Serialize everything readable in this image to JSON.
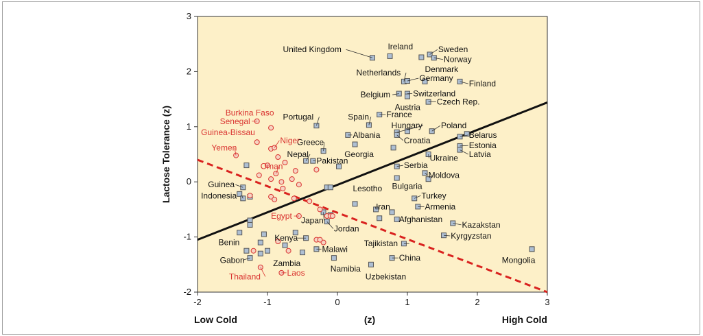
{
  "chart_data": {
    "type": "scatter",
    "title": "",
    "ylabel": "Lactose Tolerance (z)",
    "xlabel": "(z)",
    "x_left_label": "Low Cold",
    "x_right_label": "High Cold",
    "xlim": [
      -2,
      3
    ],
    "ylim": [
      -2,
      3
    ],
    "x_ticks": [
      "-2",
      "-1",
      "0",
      "1",
      "2",
      "3"
    ],
    "y_ticks": [
      "-2",
      "-1",
      "0",
      "1",
      "2",
      "3"
    ],
    "grid": false,
    "colors": {
      "background": "#fdf0c8",
      "square_fill": "#aebfd3",
      "square_stroke": "#555555",
      "circle_stroke": "#d9322f",
      "red_label": "#d9322f",
      "black_label": "#111111",
      "regression_black": "#111111",
      "regression_red": "#d9221f"
    },
    "regression_lines": [
      {
        "name": "",
        "color": "#111111",
        "style": "solid",
        "from": [
          -2,
          -1.05
        ],
        "to": [
          3,
          1.44
        ]
      },
      {
        "name": "",
        "color": "#d9221f",
        "style": "dashed",
        "from": [
          -2,
          0.4
        ],
        "to": [
          3,
          -2.0
        ]
      }
    ],
    "series": [
      {
        "marker": "square",
        "points": [
          {
            "x": 0.5,
            "y": 2.25,
            "label": "United Kingdom",
            "lx": -0.78,
            "ly": 2.4
          },
          {
            "x": 0.75,
            "y": 2.28,
            "label": "Ireland",
            "lx": 0.72,
            "ly": 2.45
          },
          {
            "x": 1.2,
            "y": 2.26
          },
          {
            "x": 1.32,
            "y": 2.31,
            "label": "Sweden",
            "lx": 1.44,
            "ly": 2.4
          },
          {
            "x": 1.38,
            "y": 2.25,
            "label": "Norway",
            "lx": 1.52,
            "ly": 2.22
          },
          {
            "x": 1.25,
            "y": 1.82,
            "label": "Denmark",
            "lx": 1.25,
            "ly": 2.04
          },
          {
            "x": 0.95,
            "y": 1.82,
            "label": "Netherlands",
            "lx": 0.27,
            "ly": 1.98
          },
          {
            "x": 1.0,
            "y": 1.83,
            "label": "Germany",
            "lx": 1.17,
            "ly": 1.88
          },
          {
            "x": 1.75,
            "y": 1.82,
            "label": "Finland",
            "lx": 1.88,
            "ly": 1.78
          },
          {
            "x": 0.88,
            "y": 1.6,
            "label": "Belgium",
            "lx": 0.33,
            "ly": 1.58
          },
          {
            "x": 1.0,
            "y": 1.6,
            "label": "Switzerland",
            "lx": 1.08,
            "ly": 1.6
          },
          {
            "x": 1.0,
            "y": 1.55,
            "label": "Austria",
            "lx": 0.82,
            "ly": 1.35
          },
          {
            "x": 1.3,
            "y": 1.45,
            "label": "Czech Rep.",
            "lx": 1.42,
            "ly": 1.45
          },
          {
            "x": 0.6,
            "y": 1.22,
            "label": "France",
            "lx": 0.7,
            "ly": 1.22
          },
          {
            "x": 0.45,
            "y": 1.03,
            "label": "Spain",
            "lx": 0.15,
            "ly": 1.18
          },
          {
            "x": -0.3,
            "y": 1.02,
            "label": "Portugal",
            "lx": -0.78,
            "ly": 1.18
          },
          {
            "x": 0.85,
            "y": 0.9,
            "label": "Hungary",
            "lx": 0.77,
            "ly": 1.02
          },
          {
            "x": 1.0,
            "y": 0.92
          },
          {
            "x": 1.35,
            "y": 0.92,
            "label": "Poland",
            "lx": 1.48,
            "ly": 1.02
          },
          {
            "x": 0.15,
            "y": 0.85,
            "label": "Albania",
            "lx": 0.22,
            "ly": 0.85
          },
          {
            "x": 0.85,
            "y": 0.85,
            "label": "Croatia",
            "lx": 0.95,
            "ly": 0.75
          },
          {
            "x": 1.75,
            "y": 0.82,
            "label": "Belarus",
            "lx": 1.88,
            "ly": 0.85
          },
          {
            "x": 1.85,
            "y": 0.87
          },
          {
            "x": 1.75,
            "y": 0.65,
            "label": "Estonia",
            "lx": 1.88,
            "ly": 0.66
          },
          {
            "x": 1.75,
            "y": 0.58,
            "label": "Latvia",
            "lx": 1.88,
            "ly": 0.5
          },
          {
            "x": 0.8,
            "y": 0.62
          },
          {
            "x": -0.2,
            "y": 0.56,
            "label": "Greece",
            "lx": -0.58,
            "ly": 0.72
          },
          {
            "x": 0.25,
            "y": 0.68,
            "label": "Georgia",
            "lx": 0.1,
            "ly": 0.5
          },
          {
            "x": -0.45,
            "y": 0.38,
            "label": "Nepal",
            "lx": -0.72,
            "ly": 0.5
          },
          {
            "x": -0.35,
            "y": 0.38,
            "label": "Pakistan",
            "lx": -0.3,
            "ly": 0.38
          },
          {
            "x": 0.02,
            "y": 0.28
          },
          {
            "x": 1.3,
            "y": 0.5,
            "label": "Ukraine",
            "lx": 1.32,
            "ly": 0.43
          },
          {
            "x": 0.85,
            "y": 0.28,
            "label": "Serbia",
            "lx": 0.95,
            "ly": 0.3
          },
          {
            "x": 1.25,
            "y": 0.16,
            "label": "Moldova",
            "lx": 1.3,
            "ly": 0.12
          },
          {
            "x": 0.85,
            "y": 0.07,
            "label": "Bulgaria",
            "lx": 0.78,
            "ly": -0.08
          },
          {
            "x": 1.3,
            "y": 0.05
          },
          {
            "x": -1.3,
            "y": 0.3
          },
          {
            "x": -1.35,
            "y": -0.1,
            "label": "Guinea",
            "lx": -1.85,
            "ly": -0.05
          },
          {
            "x": -1.4,
            "y": -0.22
          },
          {
            "x": -1.35,
            "y": -0.3,
            "label": "Indonesia",
            "lx": -1.95,
            "ly": -0.25
          },
          {
            "x": -1.25,
            "y": -0.27
          },
          {
            "x": -0.15,
            "y": -0.1
          },
          {
            "x": -0.1,
            "y": -0.1
          },
          {
            "x": 0.25,
            "y": -0.4,
            "label": "Lesotho",
            "lx": 0.22,
            "ly": -0.12
          },
          {
            "x": 1.1,
            "y": -0.3,
            "label": "Turkey",
            "lx": 1.2,
            "ly": -0.25
          },
          {
            "x": 1.15,
            "y": -0.45,
            "label": "Armenia",
            "lx": 1.25,
            "ly": -0.45
          },
          {
            "x": 0.55,
            "y": -0.5,
            "label": "Iran",
            "lx": 0.55,
            "ly": -0.45
          },
          {
            "x": 0.6,
            "y": -0.66
          },
          {
            "x": 0.78,
            "y": -0.55
          },
          {
            "x": 0.85,
            "y": -0.68,
            "label": "Afghanistan",
            "lx": 0.88,
            "ly": -0.68
          },
          {
            "x": 1.65,
            "y": -0.75,
            "label": "Kazakstan",
            "lx": 1.78,
            "ly": -0.78
          },
          {
            "x": 1.52,
            "y": -0.97,
            "label": "Kyrgyzstan",
            "lx": 1.62,
            "ly": -0.98
          },
          {
            "x": -0.2,
            "y": -0.55,
            "label": "Japan",
            "lx": -0.52,
            "ly": -0.7
          },
          {
            "x": -0.1,
            "y": -0.6
          },
          {
            "x": -0.15,
            "y": -0.72,
            "label": "Jordan",
            "lx": -0.05,
            "ly": -0.85
          },
          {
            "x": -1.25,
            "y": -0.7
          },
          {
            "x": -1.25,
            "y": -0.78
          },
          {
            "x": -1.05,
            "y": -0.95
          },
          {
            "x": -1.4,
            "y": -0.92,
            "label": "Benin",
            "lx": -1.7,
            "ly": -1.1
          },
          {
            "x": -1.1,
            "y": -1.1
          },
          {
            "x": -0.6,
            "y": -0.92
          },
          {
            "x": -0.45,
            "y": -1.02,
            "label": "Kenya",
            "lx": -0.9,
            "ly": -1.02
          },
          {
            "x": -0.75,
            "y": -1.15
          },
          {
            "x": -0.3,
            "y": -1.22,
            "label": "Malawi",
            "lx": -0.22,
            "ly": -1.22
          },
          {
            "x": -1.3,
            "y": -1.25
          },
          {
            "x": -1.0,
            "y": -1.25
          },
          {
            "x": -1.1,
            "y": -1.3
          },
          {
            "x": -0.5,
            "y": -1.28,
            "label": "Zambia",
            "lx": -0.92,
            "ly": -1.48
          },
          {
            "x": -1.25,
            "y": -1.38,
            "label": "Gabon",
            "lx": -1.68,
            "ly": -1.42
          },
          {
            "x": 0.95,
            "y": -1.12,
            "label": "Tajikistan",
            "lx": 0.38,
            "ly": -1.12
          },
          {
            "x": -0.05,
            "y": -1.38,
            "label": "Namibia",
            "lx": -0.1,
            "ly": -1.58
          },
          {
            "x": 0.78,
            "y": -1.38,
            "label": "China",
            "lx": 0.88,
            "ly": -1.38
          },
          {
            "x": 0.48,
            "y": -1.5,
            "label": "Uzbekistan",
            "lx": 0.4,
            "ly": -1.72
          },
          {
            "x": 2.78,
            "y": -1.22,
            "label": "Mongolia",
            "lx": 2.35,
            "ly": -1.42
          }
        ]
      },
      {
        "marker": "circle",
        "points": [
          {
            "x": -1.15,
            "y": 1.1,
            "label": "Senegal",
            "lx": -1.68,
            "ly": 1.1
          },
          {
            "x": -0.95,
            "y": 0.98,
            "label": "Burkina Faso",
            "lx": -1.6,
            "ly": 1.25
          },
          {
            "x": -1.15,
            "y": 0.72,
            "label": "Guinea-Bissau",
            "lx": -1.95,
            "ly": 0.9
          },
          {
            "x": -0.95,
            "y": 0.6
          },
          {
            "x": -0.9,
            "y": 0.62,
            "label": "Niger",
            "lx": -0.82,
            "ly": 0.75
          },
          {
            "x": -1.45,
            "y": 0.48,
            "label": "Yemen",
            "lx": -1.8,
            "ly": 0.62
          },
          {
            "x": -0.85,
            "y": 0.45
          },
          {
            "x": -1.0,
            "y": 0.3
          },
          {
            "x": -0.75,
            "y": 0.35
          },
          {
            "x": -1.12,
            "y": 0.12
          },
          {
            "x": -0.95,
            "y": 0.05
          },
          {
            "x": -0.8,
            "y": 0.0
          },
          {
            "x": -0.6,
            "y": 0.2
          },
          {
            "x": -0.65,
            "y": 0.05
          },
          {
            "x": -0.55,
            "y": -0.05
          },
          {
            "x": -0.3,
            "y": 0.22
          },
          {
            "x": -0.88,
            "y": 0.15,
            "label": "Oman",
            "lx": -1.1,
            "ly": 0.28
          },
          {
            "x": -0.78,
            "y": -0.12
          },
          {
            "x": -0.95,
            "y": -0.27
          },
          {
            "x": -0.9,
            "y": -0.32
          },
          {
            "x": -0.62,
            "y": -0.3
          },
          {
            "x": -0.4,
            "y": -0.35
          },
          {
            "x": -1.25,
            "y": -0.25
          },
          {
            "x": -0.25,
            "y": -0.5
          },
          {
            "x": -0.15,
            "y": -0.62
          },
          {
            "x": -0.1,
            "y": -0.62
          },
          {
            "x": -0.07,
            "y": -0.62
          },
          {
            "x": -0.55,
            "y": -0.62,
            "label": "Egypt",
            "lx": -0.95,
            "ly": -0.62
          },
          {
            "x": -0.3,
            "y": -1.05
          },
          {
            "x": -0.2,
            "y": -1.1
          },
          {
            "x": -0.25,
            "y": -1.05
          },
          {
            "x": -0.85,
            "y": -1.08
          },
          {
            "x": -1.2,
            "y": -1.25
          },
          {
            "x": -0.7,
            "y": -1.25
          },
          {
            "x": -1.1,
            "y": -1.55,
            "label": "Thailand",
            "lx": -1.55,
            "ly": -1.72
          },
          {
            "x": -0.8,
            "y": -1.65,
            "label": "Laos",
            "lx": -0.72,
            "ly": -1.65
          }
        ]
      }
    ]
  }
}
